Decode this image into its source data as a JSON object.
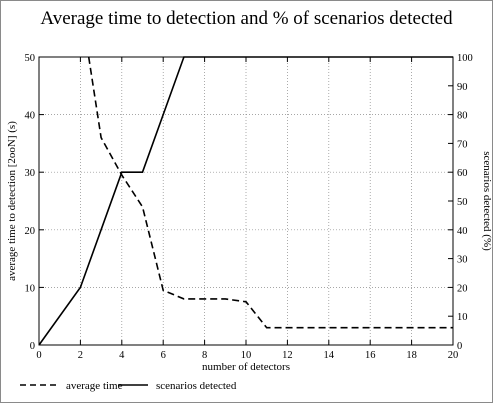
{
  "chart_data": {
    "type": "line",
    "title": "Average time to detection and % of scenarios detected",
    "xlabel": "number of detectors",
    "ylabel_left": "average time to detection [2ooN] (s)",
    "ylabel_right": "scenarios detected (%)",
    "xlim": [
      0,
      20
    ],
    "ylim_left": [
      0,
      50
    ],
    "ylim_right": [
      0,
      100
    ],
    "x_ticks": [
      0,
      2,
      4,
      6,
      8,
      10,
      12,
      14,
      16,
      18,
      20
    ],
    "y_left_ticks": [
      0,
      10,
      20,
      30,
      40,
      50
    ],
    "y_right_ticks": [
      0,
      10,
      20,
      30,
      40,
      50,
      60,
      70,
      80,
      90,
      100
    ],
    "grid": true,
    "legend_position": "bottom-left",
    "series": [
      {
        "name": "average time",
        "axis": "left",
        "style": "dashed",
        "x": [
          2.4,
          3,
          4,
          5,
          6,
          7,
          8,
          9,
          10,
          11,
          12,
          13,
          14,
          15,
          16,
          17,
          18,
          19,
          20
        ],
        "values": [
          50,
          36,
          29.5,
          24,
          9.5,
          8,
          8,
          8,
          7.5,
          3,
          3,
          3,
          3,
          3,
          3,
          3,
          3,
          3,
          3
        ]
      },
      {
        "name": "scenarios detected",
        "axis": "right",
        "style": "solid",
        "x": [
          0,
          2,
          4,
          5,
          7,
          8,
          9,
          10,
          11,
          12,
          13,
          14,
          15,
          16,
          17,
          18,
          19,
          20
        ],
        "values": [
          0,
          20,
          60,
          60,
          100,
          100,
          100,
          100,
          100,
          100,
          100,
          100,
          100,
          100,
          100,
          100,
          100,
          100
        ]
      }
    ]
  }
}
